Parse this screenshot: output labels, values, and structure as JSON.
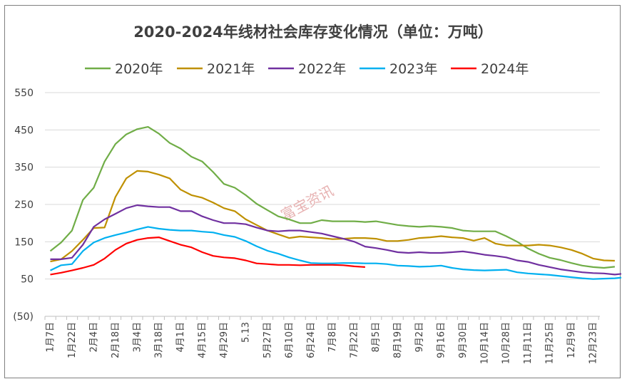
{
  "chart_data": {
    "type": "line",
    "title": "2020-2024年线材社会库存变化情况（单位：万吨）",
    "xlabel": "",
    "ylabel": "",
    "ylim": [
      -50,
      550
    ],
    "y_ticks": [
      {
        "value": 550,
        "label": "550"
      },
      {
        "value": 450,
        "label": "450"
      },
      {
        "value": 350,
        "label": "350"
      },
      {
        "value": 250,
        "label": "250"
      },
      {
        "value": 150,
        "label": "150"
      },
      {
        "value": 50,
        "label": "50"
      },
      {
        "value": -50,
        "label": "(50)",
        "color": "#c00000"
      }
    ],
    "x_tick_labels": [
      "1月7日",
      "1月22日",
      "2月4日",
      "2月18日",
      "3月4日",
      "3月18日",
      "4月1日",
      "4月15日",
      "4月29日",
      "5.13",
      "5月27日",
      "6月10日",
      "6月24日",
      "7月8日",
      "7月22日",
      "8月5日",
      "8月19日",
      "9月2日",
      "9月16日",
      "9月30日",
      "10月14日",
      "10月28日",
      "11月11日",
      "11月25日",
      "12月9日",
      "12月23日"
    ],
    "x_count": 52,
    "grid": true,
    "legend_position": "top",
    "watermark": "富宝资讯",
    "series": [
      {
        "name": "2020年",
        "color": "#70ad47",
        "values": [
          125,
          148,
          180,
          262,
          295,
          365,
          412,
          438,
          452,
          458,
          440,
          415,
          400,
          378,
          365,
          337,
          305,
          295,
          275,
          252,
          235,
          218,
          210,
          200,
          200,
          208,
          205,
          205,
          205,
          203,
          205,
          200,
          195,
          192,
          190,
          192,
          190,
          187,
          180,
          178,
          178,
          178,
          165,
          150,
          132,
          118,
          107,
          101,
          93,
          86,
          82,
          80,
          83
        ]
      },
      {
        "name": "2021年",
        "color": "#bf9000",
        "values": [
          97,
          103,
          125,
          155,
          187,
          188,
          270,
          320,
          340,
          338,
          330,
          320,
          290,
          275,
          268,
          255,
          240,
          232,
          210,
          195,
          180,
          170,
          160,
          164,
          162,
          160,
          157,
          158,
          160,
          160,
          158,
          152,
          152,
          155,
          160,
          162,
          165,
          162,
          160,
          153,
          160,
          145,
          140,
          140,
          140,
          142,
          140,
          135,
          128,
          118,
          105,
          100,
          99
        ]
      },
      {
        "name": "2022年",
        "color": "#7030a0",
        "values": [
          103,
          103,
          107,
          142,
          190,
          210,
          225,
          240,
          248,
          245,
          243,
          243,
          232,
          232,
          218,
          208,
          200,
          200,
          197,
          188,
          180,
          178,
          180,
          180,
          176,
          172,
          165,
          158,
          150,
          137,
          133,
          128,
          122,
          120,
          122,
          120,
          120,
          122,
          124,
          120,
          115,
          112,
          108,
          100,
          96,
          88,
          82,
          76,
          72,
          68,
          66,
          65,
          62,
          65
        ]
      },
      {
        "name": "2023年",
        "color": "#00b0f0",
        "values": [
          73,
          87,
          90,
          125,
          148,
          160,
          168,
          175,
          183,
          190,
          185,
          182,
          180,
          180,
          177,
          175,
          168,
          163,
          152,
          138,
          126,
          118,
          108,
          100,
          93,
          92,
          92,
          93,
          93,
          92,
          92,
          90,
          86,
          85,
          83,
          84,
          86,
          80,
          76,
          74,
          73,
          74,
          75,
          68,
          65,
          63,
          61,
          58,
          55,
          52,
          50,
          51,
          52,
          55
        ]
      },
      {
        "name": "2024年",
        "color": "#ff0000",
        "values": [
          62,
          67,
          73,
          80,
          88,
          105,
          128,
          145,
          155,
          160,
          162,
          152,
          142,
          135,
          122,
          112,
          108,
          106,
          100,
          92,
          90,
          88,
          88,
          87,
          88,
          88,
          88,
          87,
          84,
          82
        ]
      }
    ]
  }
}
